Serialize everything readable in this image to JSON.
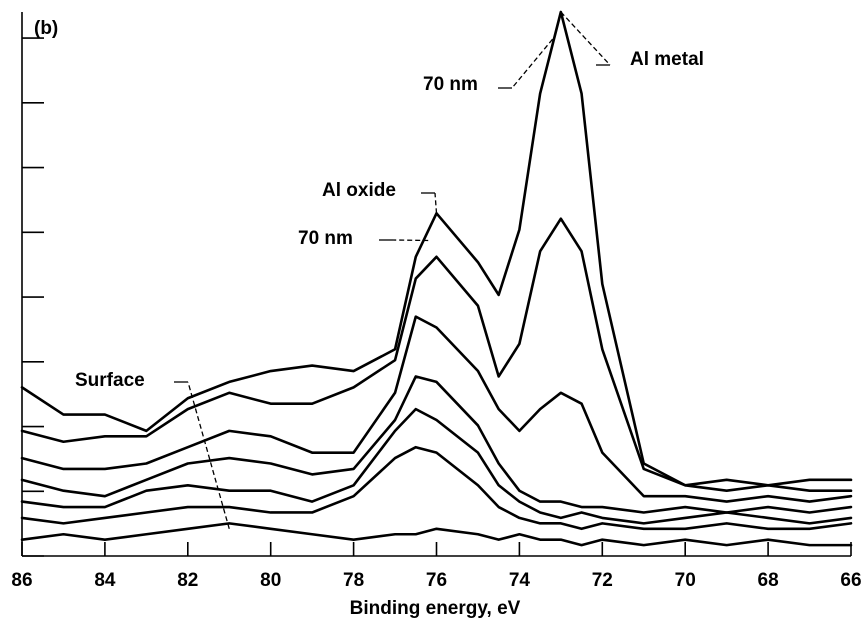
{
  "panel_label": "(b)",
  "chart_data": {
    "type": "line",
    "title": "",
    "xlabel": "Binding energy, eV",
    "ylabel": "",
    "xlim": [
      86,
      66
    ],
    "x_reversed": true,
    "ylim": [
      0,
      100
    ],
    "grid": false,
    "x_ticks": [
      86,
      84,
      82,
      80,
      78,
      76,
      74,
      72,
      70,
      68,
      66
    ],
    "x_tick_labels": [
      "86",
      "84",
      "82",
      "80",
      "78",
      "76",
      "74",
      "72",
      "70",
      "68",
      "66"
    ],
    "y_ticks": [
      0,
      11.9,
      23.8,
      35.7,
      47.6,
      59.5,
      71.4,
      83.3,
      95.2
    ],
    "series": [
      {
        "x": [
          86,
          85,
          84,
          83,
          82,
          81,
          80,
          79,
          78,
          77,
          76.5,
          76,
          75,
          74.5,
          74,
          73.5,
          73,
          72.5,
          72,
          71,
          70,
          69,
          68,
          67,
          66
        ],
        "y": [
          31,
          26,
          26,
          23,
          29,
          32,
          34,
          35,
          34,
          38,
          55,
          63,
          54,
          48,
          60,
          85,
          100,
          85,
          50,
          17,
          13,
          14,
          13,
          14,
          14
        ]
      },
      {
        "x": [
          86,
          85,
          84,
          83,
          82,
          81,
          80,
          79,
          78,
          77,
          76.5,
          76,
          75,
          74.5,
          74,
          73.5,
          73,
          72.5,
          72,
          71,
          70,
          69,
          68,
          67,
          66
        ],
        "y": [
          23,
          21,
          22,
          22,
          27,
          30,
          28,
          28,
          31,
          36,
          51,
          55,
          46,
          33,
          39,
          56,
          62,
          56,
          38,
          16,
          13,
          12,
          13,
          12,
          12
        ]
      },
      {
        "x": [
          86,
          85,
          84,
          83,
          82,
          81,
          80,
          79,
          78,
          77,
          76.5,
          76,
          75,
          74.5,
          74,
          73.5,
          73,
          72.5,
          72,
          71,
          70,
          69,
          68,
          67,
          66
        ],
        "y": [
          18,
          16,
          16,
          17,
          20,
          23,
          22,
          19,
          19,
          30,
          44,
          42,
          34,
          27,
          23,
          27,
          30,
          28,
          19,
          11,
          11,
          10,
          11,
          10,
          11
        ]
      },
      {
        "x": [
          86,
          85,
          84,
          83,
          82,
          81,
          80,
          79,
          78,
          77,
          76.5,
          76,
          75,
          74.5,
          74,
          73.5,
          73,
          72.5,
          72,
          71,
          70,
          69,
          68,
          67,
          66
        ],
        "y": [
          14,
          12,
          11,
          14,
          17,
          18,
          17,
          15,
          16,
          25,
          33,
          32,
          24,
          17,
          12,
          10,
          10,
          9,
          9,
          8,
          9,
          8,
          9,
          8,
          9
        ]
      },
      {
        "x": [
          86,
          85,
          84,
          83,
          82,
          81,
          80,
          79,
          78,
          77,
          76.5,
          76,
          75,
          74.5,
          74,
          73.5,
          73,
          72.5,
          72,
          71,
          70,
          69,
          68,
          67,
          66
        ],
        "y": [
          10,
          9,
          9,
          12,
          13,
          12,
          12,
          10,
          13,
          23,
          27,
          25,
          19,
          13,
          10,
          8,
          7,
          8,
          7,
          6,
          7,
          8,
          7,
          6,
          7
        ]
      },
      {
        "x": [
          86,
          85,
          84,
          83,
          82,
          81,
          80,
          79,
          78,
          77,
          76.5,
          76,
          75,
          74.5,
          74,
          73.5,
          73,
          72.5,
          72,
          71,
          70,
          69,
          68,
          67,
          66
        ],
        "y": [
          7,
          6,
          7,
          8,
          9,
          9,
          8,
          8,
          11,
          18,
          20,
          19,
          13,
          9,
          7,
          6,
          6,
          5,
          6,
          5,
          5,
          6,
          5,
          5,
          6
        ]
      },
      {
        "x": [
          86,
          85,
          84,
          83,
          82,
          81,
          80,
          79,
          78,
          77,
          76.5,
          76,
          75,
          74.5,
          74,
          73.5,
          73,
          72.5,
          72,
          71,
          70,
          69,
          68,
          67,
          66
        ],
        "y": [
          3,
          4,
          3,
          4,
          5,
          6,
          5,
          4,
          3,
          4,
          4,
          5,
          4,
          3,
          4,
          3,
          3,
          2,
          3,
          2,
          3,
          2,
          3,
          2,
          2
        ]
      }
    ],
    "annotations": [
      {
        "text": "Al metal",
        "x": 73.0,
        "y": 100
      },
      {
        "text": "70 nm",
        "x": 73.2,
        "y": 95
      },
      {
        "text": "Al oxide",
        "x": 76.0,
        "y": 63
      },
      {
        "text": "70 nm",
        "x": 76.2,
        "y": 58
      },
      {
        "text": "Surface",
        "x": 81.0,
        "y": 5
      }
    ]
  }
}
